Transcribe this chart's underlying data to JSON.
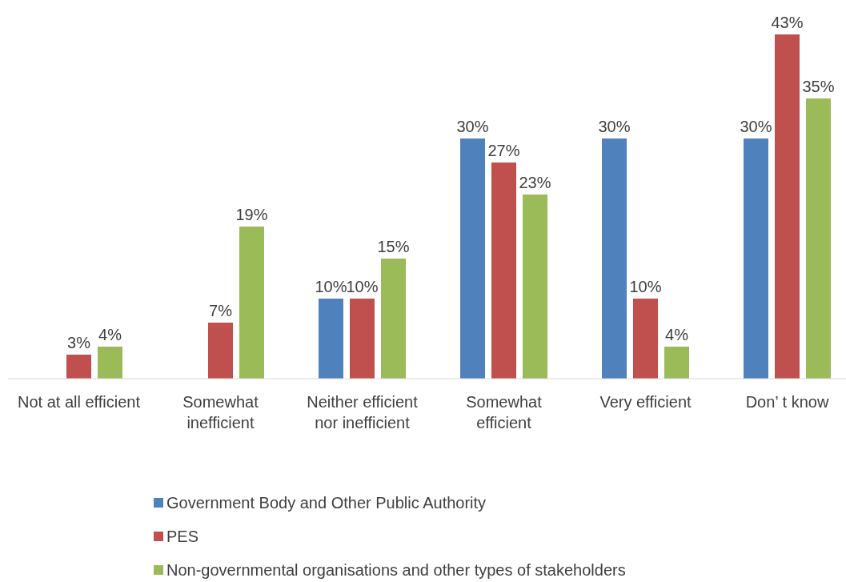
{
  "chart_data": {
    "type": "bar",
    "categories": [
      "Not at all efficient",
      "Somewhat inefficient",
      "Neither efficient nor inefficient",
      "Somewhat efficient",
      "Very efficient",
      "Don’ t know"
    ],
    "series": [
      {
        "name": "Government Body and Other Public Authority",
        "color": "#4f81bd",
        "values": [
          null,
          null,
          10,
          30,
          30,
          30
        ],
        "value_labels": [
          null,
          null,
          "10%",
          "30%",
          "30%",
          "30%"
        ]
      },
      {
        "name": "PES",
        "color": "#c0504d",
        "values": [
          3,
          7,
          10,
          27,
          10,
          43
        ],
        "value_labels": [
          "3%",
          "7%",
          "10%",
          "27%",
          "10%",
          "43%"
        ]
      },
      {
        "name": "Non-governmental organisations and other types of stakeholders",
        "color": "#9bbb59",
        "values": [
          4,
          19,
          15,
          23,
          4,
          35
        ],
        "value_labels": [
          "4%",
          "19%",
          "15%",
          "23%",
          "4%",
          "35%"
        ]
      }
    ],
    "legend": "bottom",
    "grid": false
  }
}
